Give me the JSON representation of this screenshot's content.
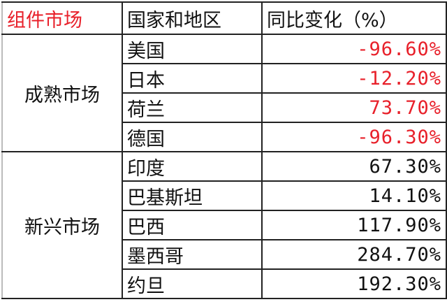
{
  "header": [
    "组件市场",
    "国家和地区",
    "同比变化（%）"
  ],
  "groups": [
    {
      "name": "成熟市场",
      "color": "#e8202a",
      "rows": [
        {
          "region": "美国",
          "change": "-96.60%"
        },
        {
          "region": "日本",
          "change": "-12.20%"
        },
        {
          "region": "荷兰",
          "change": "73.70%"
        },
        {
          "region": "德国",
          "change": "-96.30%"
        }
      ]
    },
    {
      "name": "新兴市场",
      "color": "#111111",
      "rows": [
        {
          "region": "印度",
          "change": "67.30%"
        },
        {
          "region": "巴基斯坦",
          "change": "14.10%"
        },
        {
          "region": "巴西",
          "change": "117.90%"
        },
        {
          "region": "墨西哥",
          "change": "284.70%"
        },
        {
          "region": "约旦",
          "change": "192.30%"
        }
      ]
    }
  ]
}
